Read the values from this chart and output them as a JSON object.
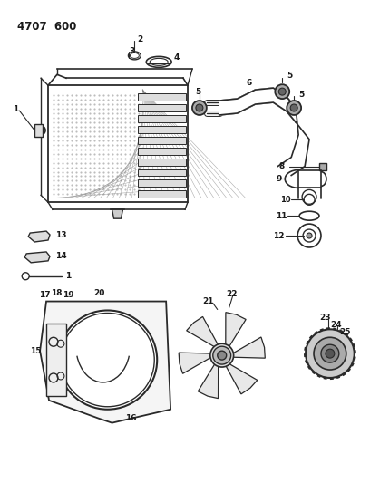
{
  "title": "4707  600",
  "bg_color": "#ffffff",
  "lc": "#2a2a2a",
  "tc": "#1a1a1a",
  "fig_w": 4.08,
  "fig_h": 5.33,
  "dpi": 100
}
